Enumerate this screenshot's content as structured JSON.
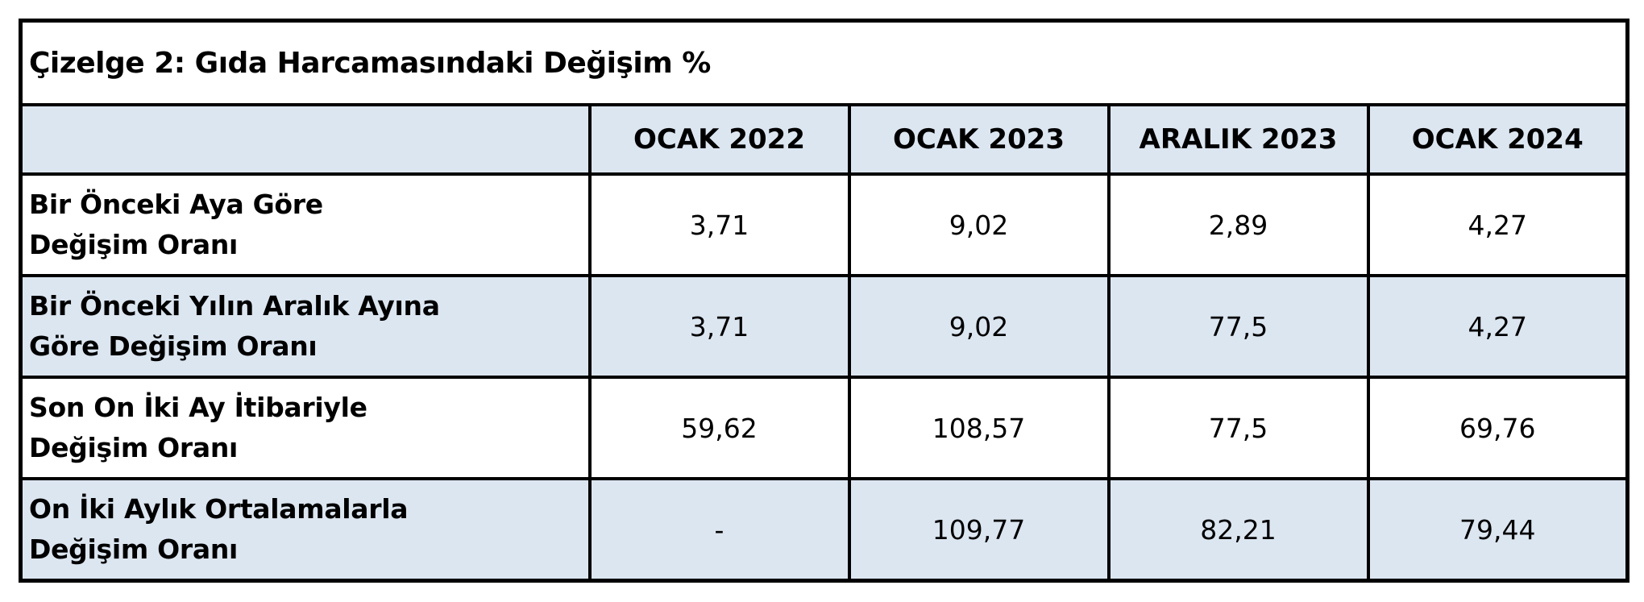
{
  "title": "Çizelge 2: Gıda Harcamasındaki Değişim %",
  "table": {
    "columns": [
      "OCAK 2022",
      "OCAK 2023",
      "ARALIK 2023",
      "OCAK 2024"
    ],
    "rows": [
      {
        "label": [
          "Bir Önceki Aya Göre",
          "Değişim Oranı"
        ],
        "values": [
          "3,71",
          "9,02",
          "2,89",
          "4,27"
        ]
      },
      {
        "label": [
          "Bir Önceki Yılın Aralık Ayına",
          "Göre Değişim Oranı"
        ],
        "values": [
          "3,71",
          "9,02",
          "77,5",
          "4,27"
        ]
      },
      {
        "label": [
          "Son On İki Ay İtibariyle",
          "Değişim Oranı"
        ],
        "values": [
          "59,62",
          "108,57",
          "77,5",
          "69,76"
        ]
      },
      {
        "label": [
          "On İki Aylık Ortalamalarla",
          "Değişim Oranı"
        ],
        "values": [
          "-",
          "109,77",
          "82,21",
          "79,44"
        ]
      }
    ]
  }
}
